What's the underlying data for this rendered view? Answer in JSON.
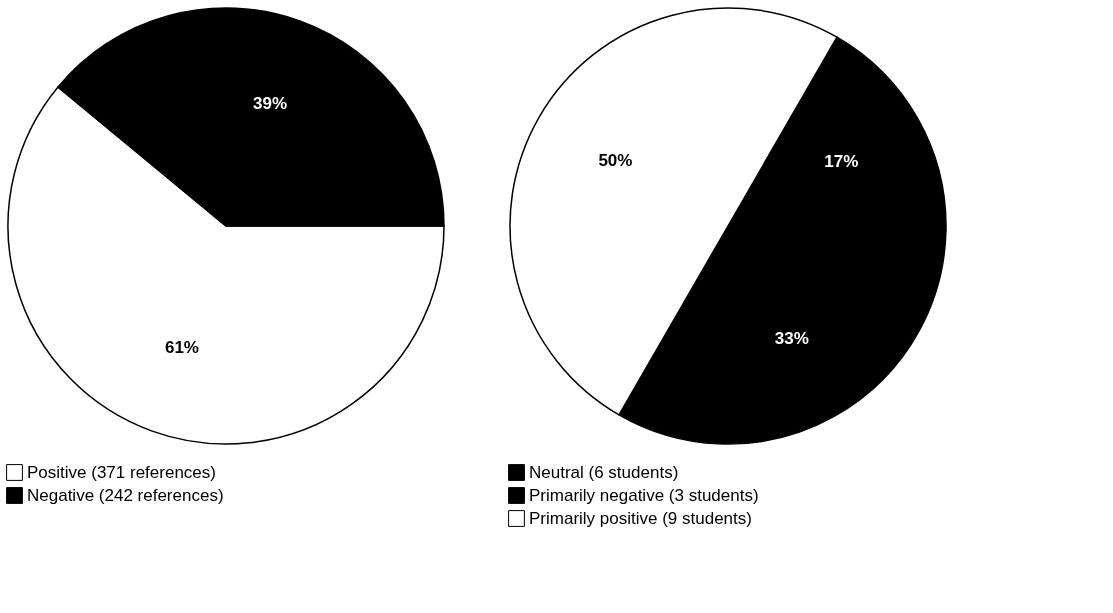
{
  "chart_data": [
    {
      "type": "pie",
      "categories": [
        "Positive (371 references)",
        "Negative (242 references)"
      ],
      "values": [
        61,
        39
      ],
      "colors": [
        "#ffffff",
        "#000000"
      ],
      "value_labels": [
        "61%",
        "39%"
      ],
      "legend": "bottom"
    },
    {
      "type": "pie",
      "categories": [
        "Neutral (6 students)",
        "Primarily negative (3 students)",
        "Primarily positive (9 students)"
      ],
      "values": [
        17,
        33,
        50
      ],
      "colors": [
        "#000000",
        "#000000",
        "#ffffff"
      ],
      "value_labels": [
        "17%",
        "33%",
        "50%"
      ],
      "legend": "bottom"
    }
  ]
}
